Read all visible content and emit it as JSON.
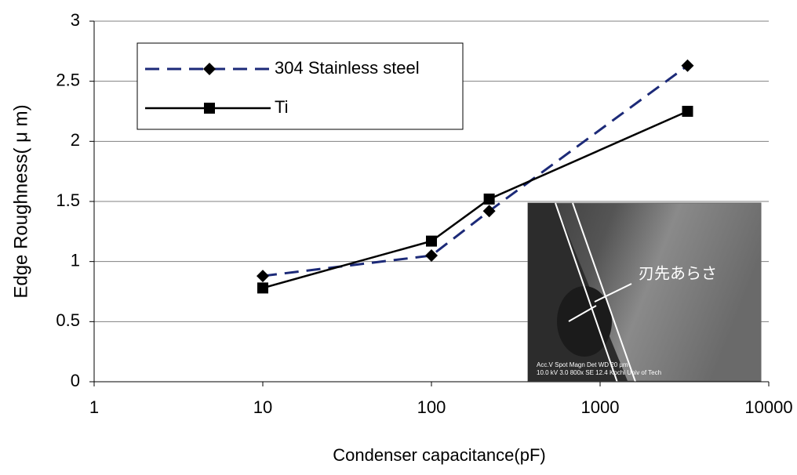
{
  "chart_data": {
    "type": "line",
    "x_label": "Condenser capacitance(pF)",
    "y_label": "Edge Roughness( μ m)",
    "x": [
      10,
      100,
      220,
      3300
    ],
    "series": [
      {
        "name": "304 Stainless steel",
        "color": "#1c2a78",
        "dash": true,
        "marker": "diamond",
        "marker_color": "#000000",
        "values": [
          0.88,
          1.05,
          1.42,
          2.63
        ]
      },
      {
        "name": "Ti",
        "color": "#000000",
        "dash": false,
        "marker": "square",
        "marker_color": "#000000",
        "values": [
          0.78,
          1.17,
          1.52,
          2.25
        ]
      }
    ],
    "xscale": "log",
    "xlim": [
      1,
      10000
    ],
    "xticks": [
      1,
      10,
      100,
      1000,
      10000
    ],
    "ylim": [
      0,
      3
    ],
    "yticks": [
      0,
      0.5,
      1,
      1.5,
      2,
      2.5,
      3
    ],
    "grid": true,
    "legend": "upper left",
    "inset": {
      "label": "刃先あらさ",
      "caption": [
        "Acc.V  Spot Magn   Det  WD       20 μm",
        "10.0 kV 3.0  800x   SE  12.4 Kochi Univ of Tech"
      ]
    }
  }
}
